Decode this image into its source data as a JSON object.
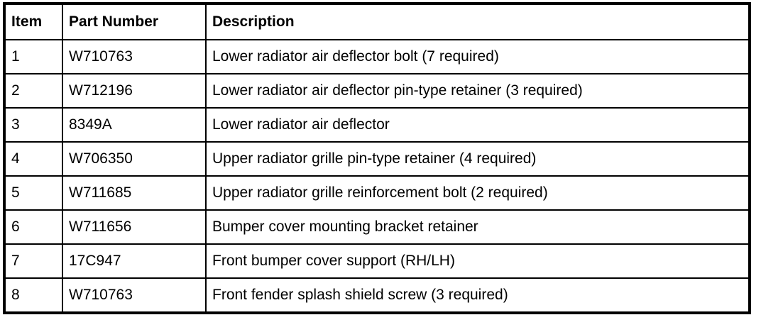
{
  "table": {
    "headers": [
      "Item",
      "Part Number",
      "Description"
    ],
    "rows": [
      [
        "1",
        "W710763",
        "Lower radiator air deflector bolt (7 required)"
      ],
      [
        "2",
        "W712196",
        "Lower radiator air deflector pin-type retainer (3 required)"
      ],
      [
        "3",
        "8349A",
        "Lower radiator air deflector"
      ],
      [
        "4",
        "W706350",
        "Upper radiator grille pin-type retainer (4 required)"
      ],
      [
        "5",
        "W711685",
        "Upper radiator grille reinforcement bolt (2 required)"
      ],
      [
        "6",
        "W711656",
        "Bumper cover mounting bracket retainer"
      ],
      [
        "7",
        "17C947",
        "Front bumper cover support (RH/LH)"
      ],
      [
        "8",
        "W710763",
        "Front fender splash shield screw (3 required)"
      ]
    ]
  }
}
